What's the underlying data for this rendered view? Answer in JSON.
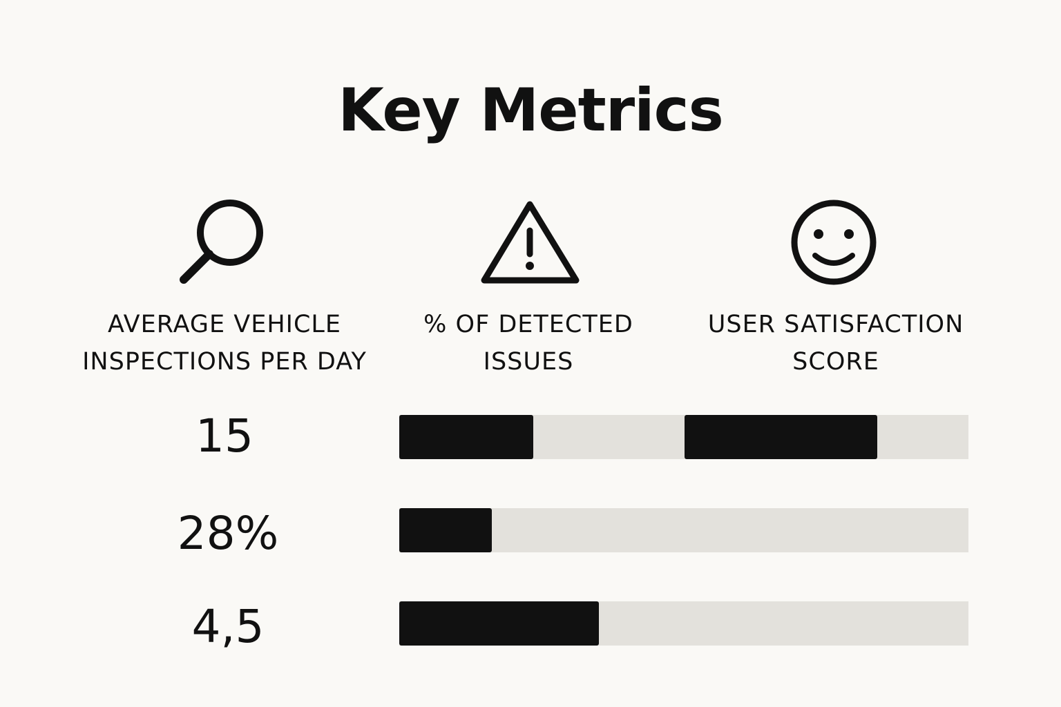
{
  "title": "Key Metrics",
  "colors": {
    "background": "#faf9f6",
    "fill": "#111111",
    "track": "#e3e1dc"
  },
  "metrics": [
    {
      "icon": "magnifier-icon",
      "label": "AVERAGE VEHICLE\nINSPECTIONS PER DAY"
    },
    {
      "icon": "warning-icon",
      "label": "% OF DETECTED\nISSUES"
    },
    {
      "icon": "smiley-icon",
      "label": "USER SATISFACTION\nSCORE"
    }
  ],
  "chart_data": {
    "type": "bar",
    "orientation": "horizontal",
    "rows": [
      {
        "value_label": "15",
        "segments": [
          {
            "fill": 0.47
          },
          {
            "fill": 0.68
          }
        ]
      },
      {
        "value_label": "28%",
        "fill": 0.163
      },
      {
        "value_label": "4,5",
        "fill": 0.351
      }
    ]
  }
}
